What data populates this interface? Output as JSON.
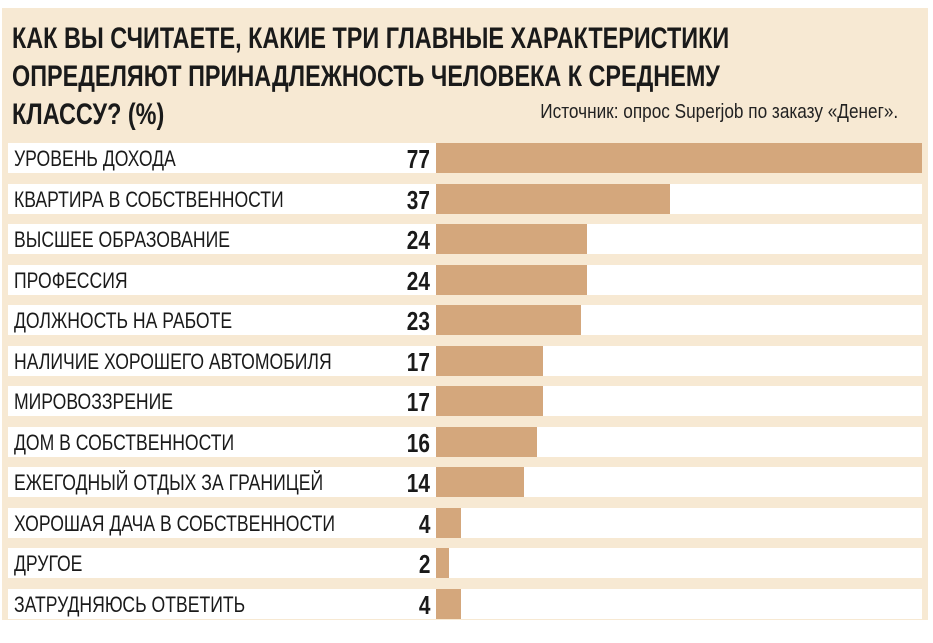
{
  "chart_data": {
    "type": "bar",
    "orientation": "horizontal",
    "title": "КАК ВЫ СЧИТАЕТЕ, КАКИЕ ТРИ ГЛАВНЫЕ ХАРАКТЕРИСТИКИ\nОПРЕДЕЛЯЮТ ПРИНАДЛЕЖНОСТЬ ЧЕЛОВЕКА К СРЕДНЕМУ\nКЛАССУ? (%)",
    "source": "Источник: опрос Superjob по заказу «Денег».",
    "categories": [
      "УРОВЕНЬ ДОХОДА",
      "КВАРТИРА В СОБСТВЕННОСТИ",
      "ВЫСШЕЕ ОБРАЗОВАНИЕ",
      "ПРОФЕССИЯ",
      "ДОЛЖНОСТЬ НА РАБОТЕ",
      "НАЛИЧИЕ ХОРОШЕГО АВТОМОБИЛЯ",
      "МИРОВОЗЗРЕНИЕ",
      "ДОМ В СОБСТВЕННОСТИ",
      "ЕЖЕГОДНЫЙ ОТДЫХ ЗА ГРАНИЦЕЙ",
      "ХОРОШАЯ ДАЧА В СОБСТВЕННОСТИ",
      "ДРУГОЕ",
      "ЗАТРУДНЯЮСЬ ОТВЕТИТЬ"
    ],
    "values": [
      77,
      37,
      24,
      24,
      23,
      17,
      17,
      16,
      14,
      4,
      2,
      4
    ],
    "xlim": [
      0,
      77
    ],
    "grid": false,
    "bar_color": "#d4a77c",
    "background_color": "#f7e9d3"
  }
}
